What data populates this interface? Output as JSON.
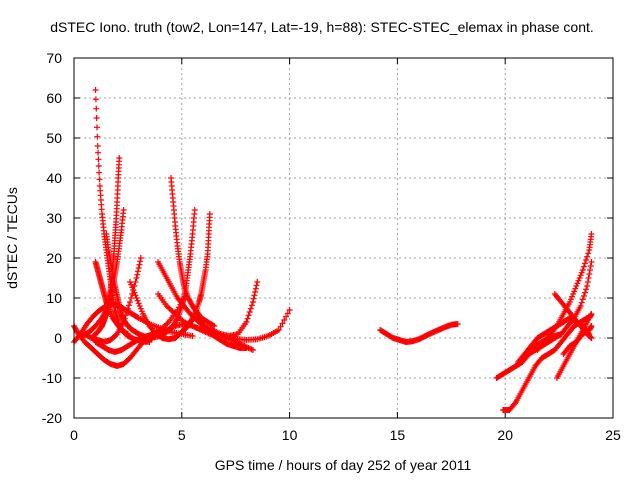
{
  "chart_data": {
    "type": "scatter",
    "title": "dSTEC Iono. truth (tow2, Lon=147, Lat=-19, h=88): STEC-STEC_elemax in phase cont.",
    "xlabel": "GPS time / hours of day 252 of year 2011",
    "ylabel": "dSTEC  / TECUs",
    "xlim": [
      0,
      25
    ],
    "ylim": [
      -20,
      70
    ],
    "xticks": [
      0,
      5,
      10,
      15,
      20,
      25
    ],
    "yticks": [
      -20,
      -10,
      0,
      10,
      20,
      30,
      40,
      50,
      60,
      70
    ],
    "grid": true,
    "marker": "plus",
    "color": "#ff0000",
    "series": [
      {
        "x": [
          1.0,
          1.1,
          1.2,
          1.3,
          1.4,
          1.5,
          1.6,
          1.7,
          1.8,
          1.9,
          2.0,
          2.1,
          2.3,
          2.5,
          2.8,
          3.1,
          3.5
        ],
        "y": [
          62,
          48,
          38,
          31,
          26,
          22,
          18,
          14,
          10,
          7,
          5,
          3,
          1.5,
          0.5,
          -0.3,
          -0.8,
          -1
        ]
      },
      {
        "x": [
          1.5,
          1.6,
          1.7,
          1.8,
          1.9,
          2.0,
          2.1,
          2.2,
          2.3,
          2.5,
          2.7,
          3.0,
          3.3,
          3.6
        ],
        "y": [
          26,
          22,
          19,
          16,
          13,
          10.5,
          8,
          6,
          4.5,
          3,
          2,
          1,
          0.3,
          -0.2
        ]
      },
      {
        "x": [
          2.1,
          2.05,
          2.0,
          1.95,
          1.9,
          1.85,
          1.8,
          1.75,
          1.7,
          1.65,
          1.6,
          1.5,
          1.4,
          1.3,
          1.1,
          0.9
        ],
        "y": [
          45,
          40,
          34,
          29,
          25,
          21,
          18,
          15,
          12,
          10,
          8,
          6,
          4.5,
          3,
          1.5,
          0.5
        ]
      },
      {
        "x": [
          2.3,
          2.2,
          2.1,
          2.0,
          1.9,
          1.8,
          1.7,
          1.5,
          1.3,
          1.0,
          0.7,
          0.4
        ],
        "y": [
          32,
          27,
          23,
          19,
          16,
          13,
          10,
          7,
          5,
          3,
          1.5,
          0.5
        ]
      },
      {
        "x": [
          1.0,
          1.1,
          1.2,
          1.3,
          1.4,
          1.5,
          1.6,
          1.8,
          2.0,
          2.2,
          2.5
        ],
        "y": [
          19,
          17,
          15,
          13,
          11,
          9,
          7.5,
          5,
          3.5,
          2,
          1
        ]
      },
      {
        "x": [
          0.0,
          0.3,
          0.6,
          0.9,
          1.2,
          1.5,
          1.8,
          2.1,
          2.4,
          2.7,
          3.0,
          3.5,
          4.0,
          4.5,
          5.0,
          5.5
        ],
        "y": [
          -1,
          1,
          3.5,
          5.5,
          7,
          8,
          8.5,
          8,
          7,
          6,
          5,
          3.5,
          2.5,
          1.5,
          1,
          0.5
        ]
      },
      {
        "x": [
          0.0,
          0.2,
          0.5,
          0.8,
          1.1,
          1.4,
          1.7,
          2.0,
          2.3,
          2.6,
          2.9,
          3.2,
          3.5
        ],
        "y": [
          3,
          1,
          -1,
          -2.5,
          -4,
          -5.5,
          -6.5,
          -7,
          -6.5,
          -5,
          -3,
          -1,
          0.5
        ]
      },
      {
        "x": [
          0.5,
          0.8,
          1.1,
          1.4,
          1.7,
          2.0,
          2.3,
          2.6,
          2.9,
          3.1
        ],
        "y": [
          1,
          0,
          -0.5,
          -1,
          -0.5,
          1,
          4,
          9,
          15,
          20
        ]
      },
      {
        "x": [
          1.0,
          1.3,
          1.6,
          1.9,
          2.2,
          2.5,
          2.8,
          3.1,
          3.4,
          3.7,
          4.0,
          4.4,
          4.8,
          5.2
        ],
        "y": [
          -1,
          -2,
          -3,
          -3.5,
          -3,
          -2,
          -1,
          0,
          0.5,
          1,
          2,
          4,
          7,
          11
        ]
      },
      {
        "x": [
          2.6,
          2.9,
          3.2,
          3.5,
          3.8,
          4.1,
          4.4,
          4.7,
          5.0,
          5.3,
          5.6,
          5.9,
          6.2,
          6.5,
          6.8,
          7.1,
          7.4,
          7.7,
          8.0
        ],
        "y": [
          14,
          10,
          6,
          3,
          1,
          0,
          -0.3,
          0,
          1.5,
          3.5,
          5,
          4,
          2,
          0.5,
          -0.5,
          -1.5,
          -2,
          -2.5,
          -2.5
        ]
      },
      {
        "x": [
          4.5,
          4.6,
          4.7,
          4.8,
          4.9,
          5.0,
          5.1,
          5.3,
          5.5,
          5.7,
          5.9,
          6.2,
          6.5
        ],
        "y": [
          40,
          34,
          28,
          23,
          19,
          16,
          13,
          10,
          8,
          6.5,
          5,
          4,
          3
        ]
      },
      {
        "x": [
          5.6,
          5.5,
          5.4,
          5.3,
          5.2,
          5.1,
          5.0,
          4.8,
          4.6,
          4.3,
          4.0,
          3.6
        ],
        "y": [
          32,
          26,
          21,
          17,
          13,
          10,
          8,
          5,
          3,
          1.5,
          0.5,
          0
        ]
      },
      {
        "x": [
          6.3,
          6.25,
          6.2,
          6.1,
          6.0,
          5.9,
          5.8,
          5.6,
          5.4,
          5.2,
          5.0
        ],
        "y": [
          31,
          26,
          21,
          17,
          14,
          11,
          9,
          6,
          4,
          2.5,
          1.5
        ]
      },
      {
        "x": [
          3.9,
          4.2,
          4.5,
          4.8,
          5.1,
          5.4,
          5.7,
          6.0,
          6.4,
          6.8,
          7.2,
          7.6,
          8.0,
          8.3,
          8.5
        ],
        "y": [
          19,
          16,
          13,
          10,
          8,
          6,
          4.5,
          3,
          2,
          1,
          0.5,
          1,
          4,
          9,
          14
        ]
      },
      {
        "x": [
          3.9,
          4.3,
          4.7,
          5.1,
          5.5,
          6.0,
          6.5,
          7.0,
          7.5,
          8.0,
          8.5,
          9.0,
          9.5,
          10.0
        ],
        "y": [
          11,
          8,
          6,
          4,
          3,
          2,
          1,
          0.3,
          -0.2,
          -0.5,
          -0.3,
          0.5,
          2,
          7
        ]
      },
      {
        "x": [
          3.3,
          3.6,
          3.9,
          4.3,
          4.7,
          5.1,
          5.5,
          5.9,
          6.3,
          6.7,
          7.1,
          7.5,
          7.9,
          8.3
        ],
        "y": [
          -1,
          0,
          1,
          2,
          3,
          3.5,
          3,
          2,
          1,
          0.5,
          0,
          -1,
          -2,
          -3
        ]
      },
      {
        "x": [
          14.2,
          14.5,
          14.8,
          15.1,
          15.4,
          15.7,
          16.0,
          16.3,
          16.6,
          16.9,
          17.2,
          17.5,
          17.8
        ],
        "y": [
          2,
          1,
          0,
          -0.5,
          -1,
          -0.8,
          -0.3,
          0.5,
          1.3,
          2,
          2.7,
          3.3,
          3.5
        ]
      },
      {
        "x": [
          19.9,
          20.2,
          20.5,
          20.8,
          21.1,
          21.4,
          21.7,
          22.0,
          22.3,
          22.6,
          22.9,
          23.2,
          23.5,
          23.8
        ],
        "y": [
          -18,
          -18,
          -16,
          -13,
          -10,
          -7,
          -5,
          -4,
          -3,
          -1,
          1,
          3,
          4,
          5
        ]
      },
      {
        "x": [
          19.6,
          19.9,
          20.2,
          20.5,
          20.8,
          21.1,
          21.4,
          21.7,
          22.0,
          22.3,
          22.6
        ],
        "y": [
          -10,
          -9,
          -8,
          -7,
          -6,
          -4,
          -2,
          -1,
          0,
          0.5,
          1
        ]
      },
      {
        "x": [
          20.6,
          20.9,
          21.2,
          21.5,
          21.8,
          22.1,
          22.4,
          22.7,
          23.0,
          23.3,
          23.6,
          23.9
        ],
        "y": [
          -6,
          -4,
          -2,
          0,
          1,
          2,
          3,
          4,
          5,
          4,
          3,
          1
        ]
      },
      {
        "x": [
          20.8,
          21.1,
          21.4,
          21.7,
          22.0,
          22.3,
          22.6,
          22.9,
          23.2,
          23.5,
          23.8,
          24.0
        ],
        "y": [
          -5,
          -4,
          -3,
          -2,
          -1,
          0,
          1,
          3,
          5,
          8,
          13,
          19
        ]
      },
      {
        "x": [
          22.3,
          22.6,
          22.9,
          23.2,
          23.5,
          23.8,
          24.0
        ],
        "y": [
          11,
          9,
          7,
          5,
          3,
          1,
          0
        ]
      },
      {
        "x": [
          22.4,
          22.7,
          23.0,
          23.3,
          23.6,
          23.9,
          24.0
        ],
        "y": [
          -10,
          -7,
          -4,
          -1,
          2,
          5,
          6
        ]
      },
      {
        "x": [
          21.5,
          21.8,
          22.1,
          22.4,
          22.7,
          23.0,
          23.3,
          23.6,
          23.9,
          24.0
        ],
        "y": [
          -3,
          -1,
          1,
          3,
          6,
          9,
          13,
          17,
          22,
          26
        ]
      },
      {
        "x": [
          22.7,
          23.0,
          23.3,
          23.6,
          23.9,
          24.0
        ],
        "y": [
          -4,
          -2,
          -1,
          1,
          2,
          3
        ]
      }
    ]
  }
}
